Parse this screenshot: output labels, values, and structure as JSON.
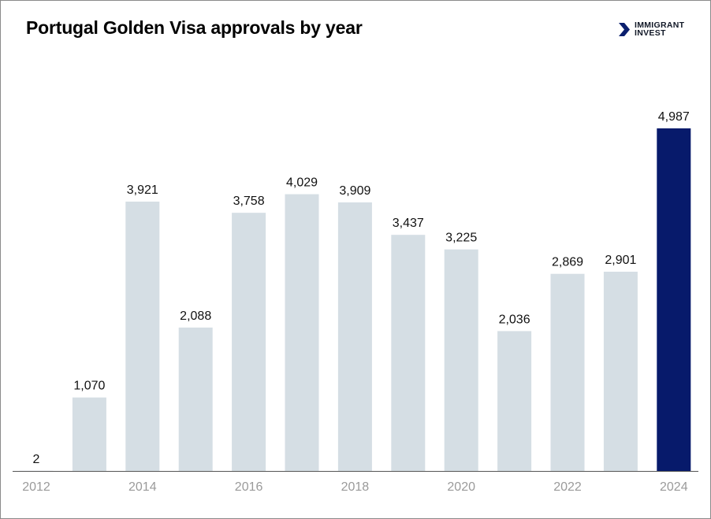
{
  "title": "Portugal Golden Visa approvals by year",
  "brand": {
    "line1": "IMMIGRANT",
    "line2": "INVEST",
    "icon": "brand-chevron-icon"
  },
  "colors": {
    "bar": "#d5dee4",
    "highlight": "#071a6b",
    "axis": "#555555"
  },
  "chart_data": {
    "type": "bar",
    "title": "Portugal Golden Visa approvals by year",
    "xlabel": "",
    "ylabel": "",
    "categories": [
      "2012",
      "2013",
      "2014",
      "2015",
      "2016",
      "2017",
      "2018",
      "2019",
      "2020",
      "2021",
      "2022",
      "2023",
      "2024"
    ],
    "values": [
      2,
      1070,
      3921,
      2088,
      3758,
      4029,
      3909,
      3437,
      3225,
      2036,
      2869,
      2901,
      4987
    ],
    "data_labels": [
      "2",
      "1,070",
      "3,921",
      "2,088",
      "3,758",
      "4,029",
      "3,909",
      "3,437",
      "3,225",
      "2,036",
      "2,869",
      "2,901",
      "4,987"
    ],
    "tick_labels": [
      "2012",
      "",
      "2014",
      "",
      "2016",
      "",
      "2018",
      "",
      "2020",
      "",
      "2022",
      "",
      "2024"
    ],
    "highlight_category": "2024",
    "ylim": [
      0,
      4987
    ],
    "grid": false,
    "legend": "none"
  }
}
